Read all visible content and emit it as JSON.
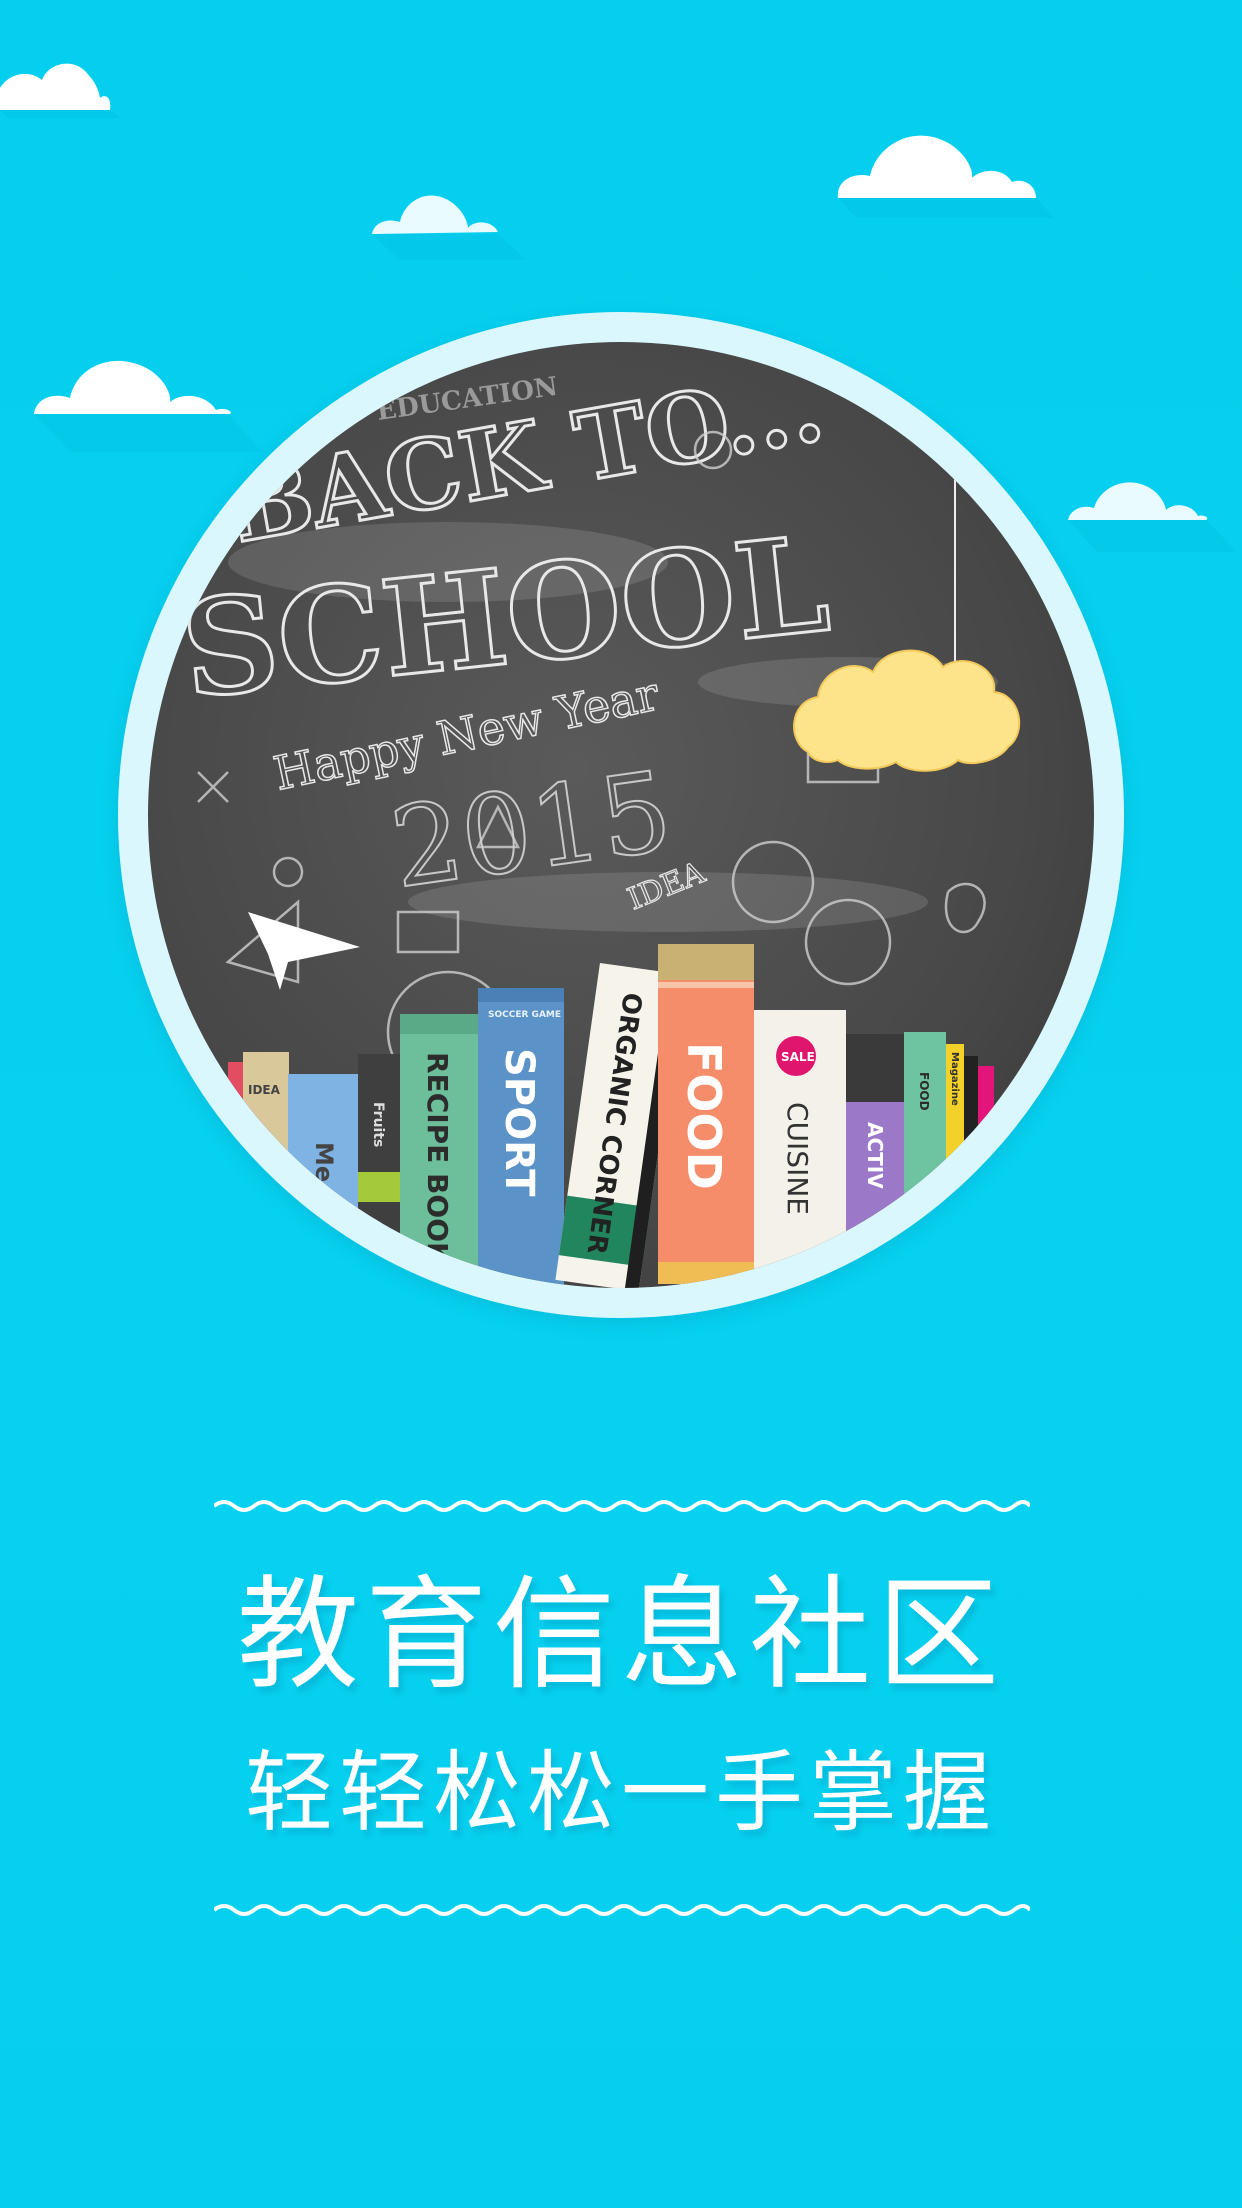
{
  "brand": {
    "background": "#06d0ef",
    "frame": "#d9f7fd",
    "chalkboard": "#4b4b4b"
  },
  "hero": {
    "chalk_line1": "BACK TO...",
    "chalk_line2": "SCHOOL",
    "chalk_greeting": "Happy New Year",
    "chalk_year": "2015",
    "chalk_idea": "IDEA",
    "chalk_top": "EDUCATION",
    "books": {
      "recipe": "RECIPE BOOK",
      "sport": "SPORT",
      "sport_top": "SOCCER GAME",
      "organic": "ORGANIC CORNER",
      "food": "FOOD",
      "sale": "SALE",
      "cuisine": "CUISINE",
      "food_small": "FOOD",
      "activ": "ACTIV",
      "media": "Me",
      "fruits": "Fruits",
      "idea": "IDEA",
      "magazine": "Magazine"
    }
  },
  "headline": "教育信息社区",
  "subheadline": "轻轻松松一手掌握"
}
